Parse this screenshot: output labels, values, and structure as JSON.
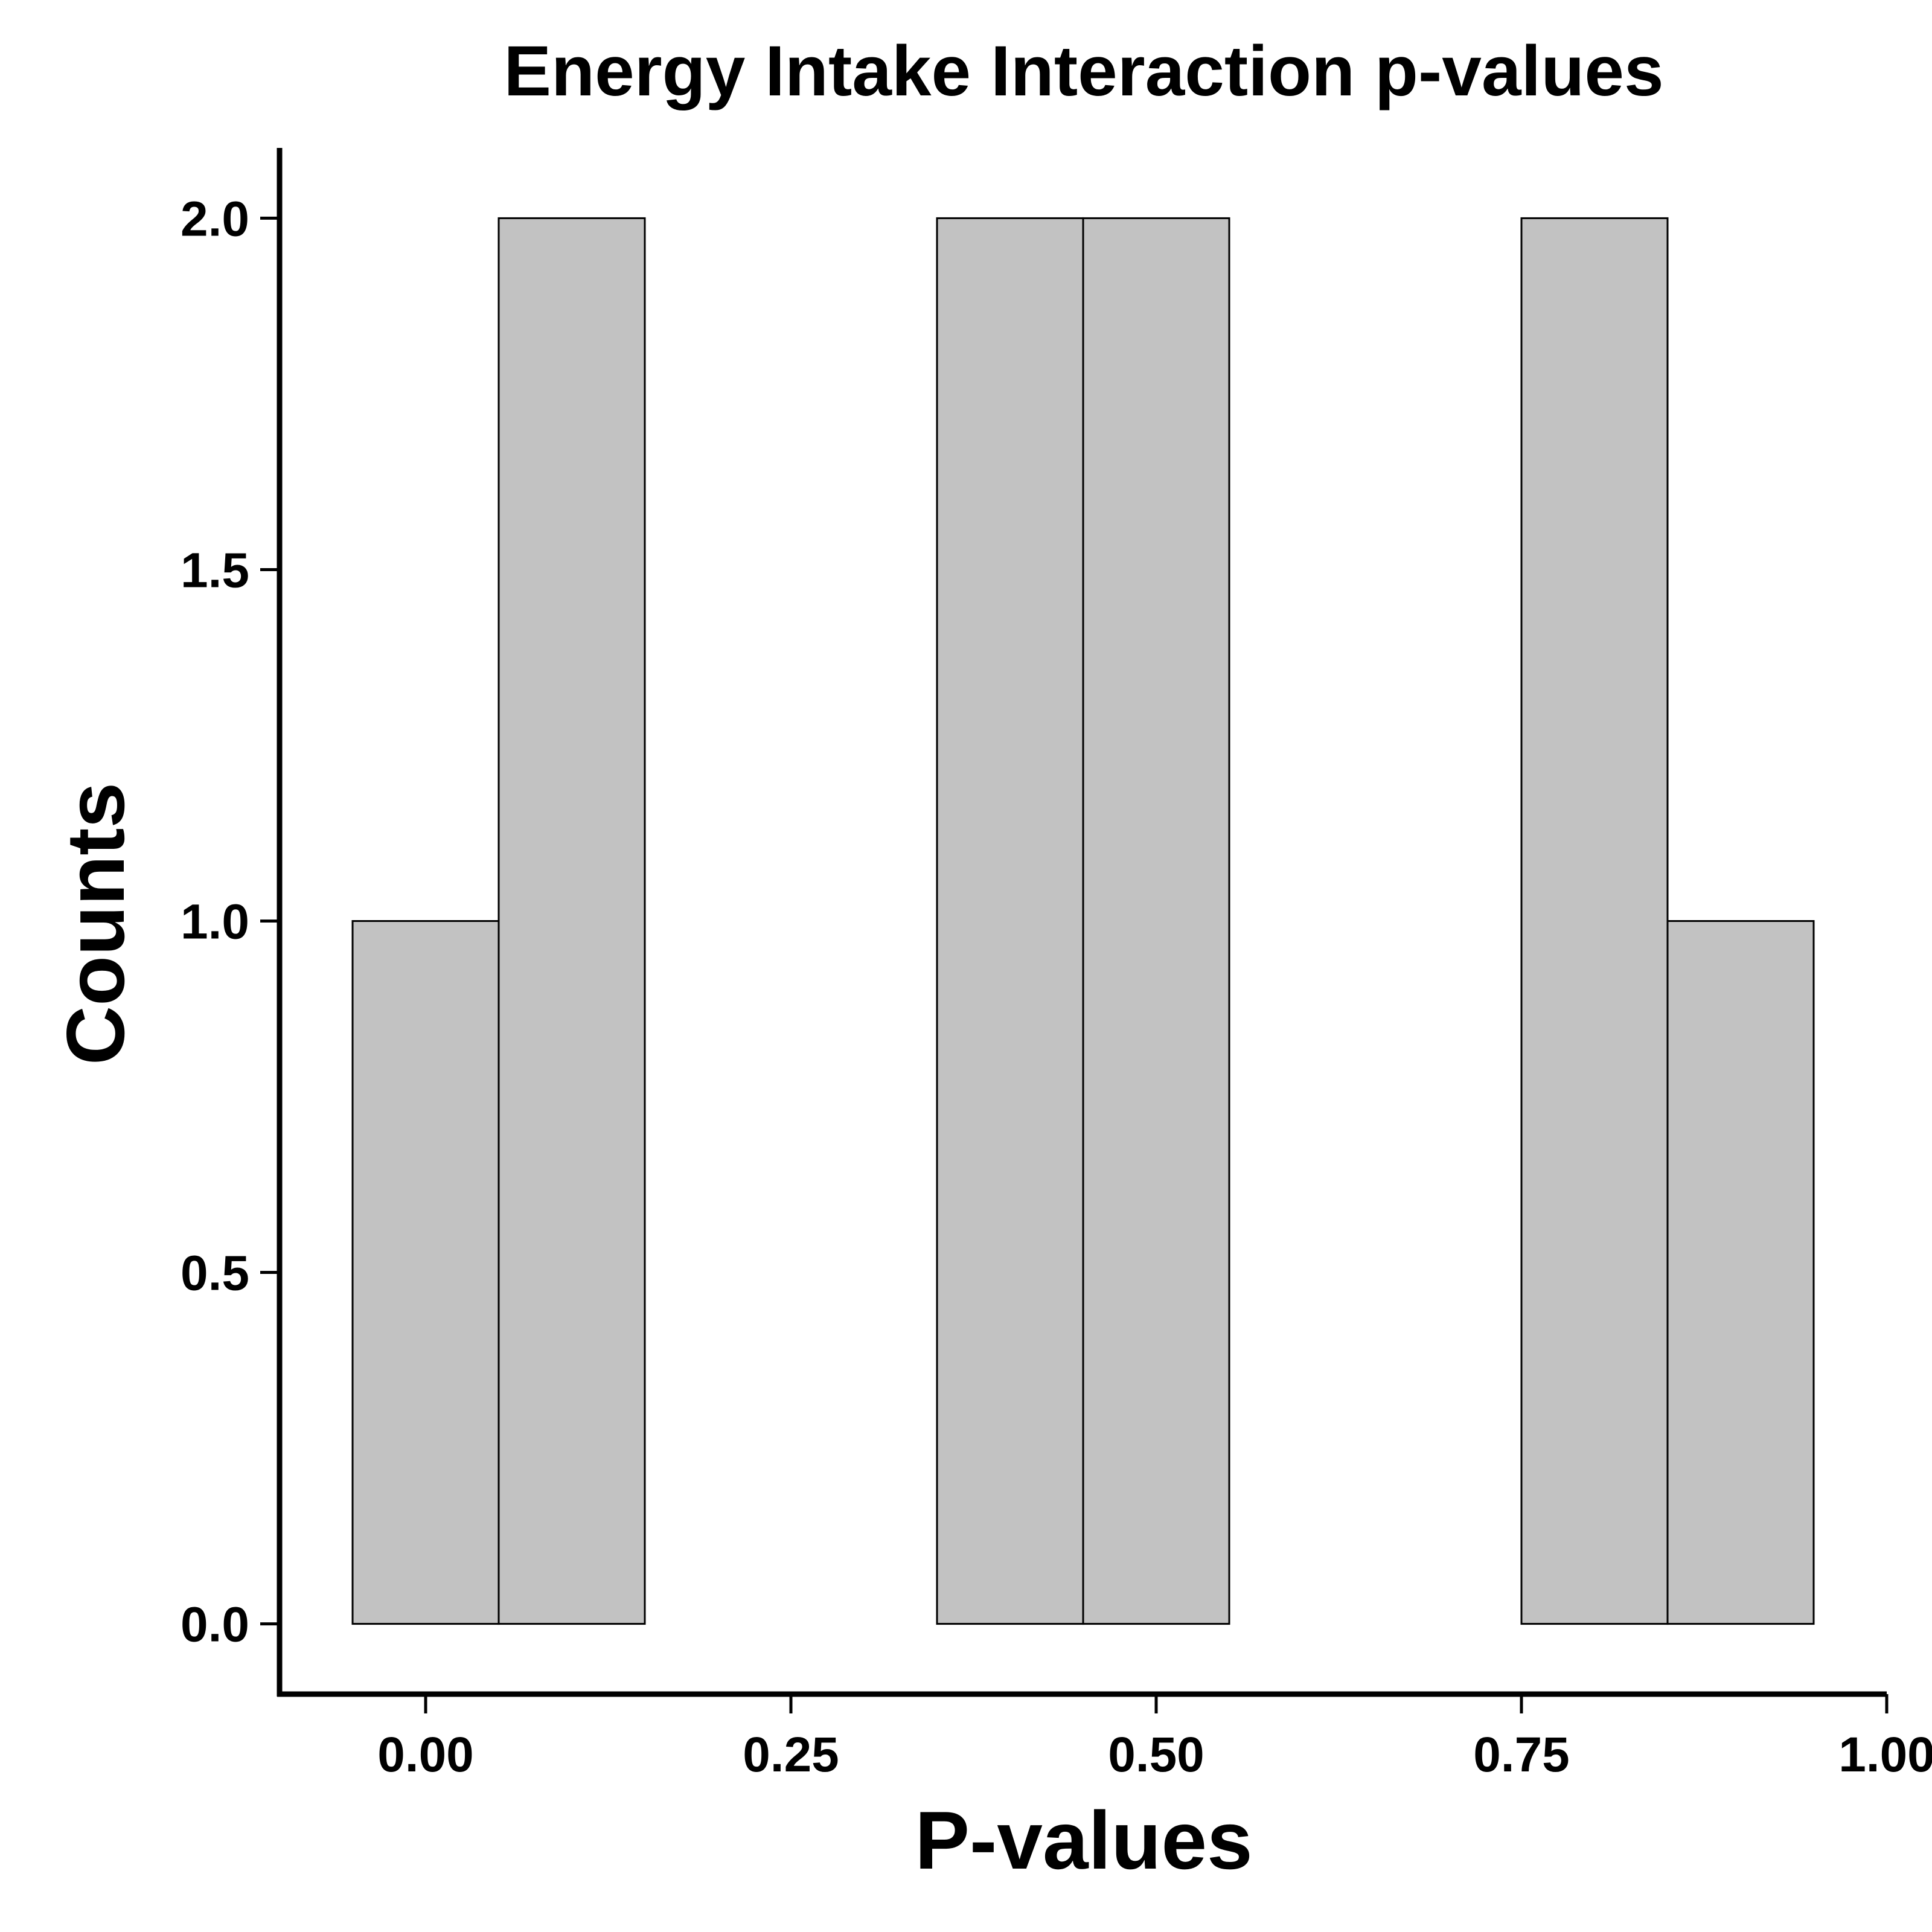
{
  "chart_data": {
    "type": "bar",
    "title": "Energy Intake Interaction p-values",
    "xlabel": "P-values",
    "ylabel": "Counts",
    "bin_width": 0.1,
    "bins": [
      {
        "x0": -0.05,
        "x1": 0.05,
        "count": 1
      },
      {
        "x0": 0.05,
        "x1": 0.15,
        "count": 2
      },
      {
        "x0": 0.15,
        "x1": 0.25,
        "count": 0
      },
      {
        "x0": 0.25,
        "x1": 0.35,
        "count": 0
      },
      {
        "x0": 0.35,
        "x1": 0.45,
        "count": 2
      },
      {
        "x0": 0.45,
        "x1": 0.55,
        "count": 2
      },
      {
        "x0": 0.55,
        "x1": 0.65,
        "count": 0
      },
      {
        "x0": 0.65,
        "x1": 0.75,
        "count": 0
      },
      {
        "x0": 0.75,
        "x1": 0.85,
        "count": 2
      },
      {
        "x0": 0.85,
        "x1": 0.95,
        "count": 1
      }
    ],
    "xlim": [
      -0.1,
      1.0
    ],
    "ylim": [
      -0.1,
      2.1
    ],
    "x_ticks": [
      0,
      0.25,
      0.5,
      0.75,
      1.0
    ],
    "x_tick_labels": [
      "0.00",
      "0.25",
      "0.50",
      "0.75",
      "1.00"
    ],
    "y_ticks": [
      0,
      0.5,
      1.0,
      1.5,
      2.0
    ],
    "y_tick_labels": [
      "0.0",
      "0.5",
      "1.0",
      "1.5",
      "2.0"
    ],
    "grid": false,
    "legend": "none",
    "colors": {
      "bar_fill": "#c2c2c2",
      "bar_stroke": "#000000",
      "axis": "#000000"
    }
  }
}
